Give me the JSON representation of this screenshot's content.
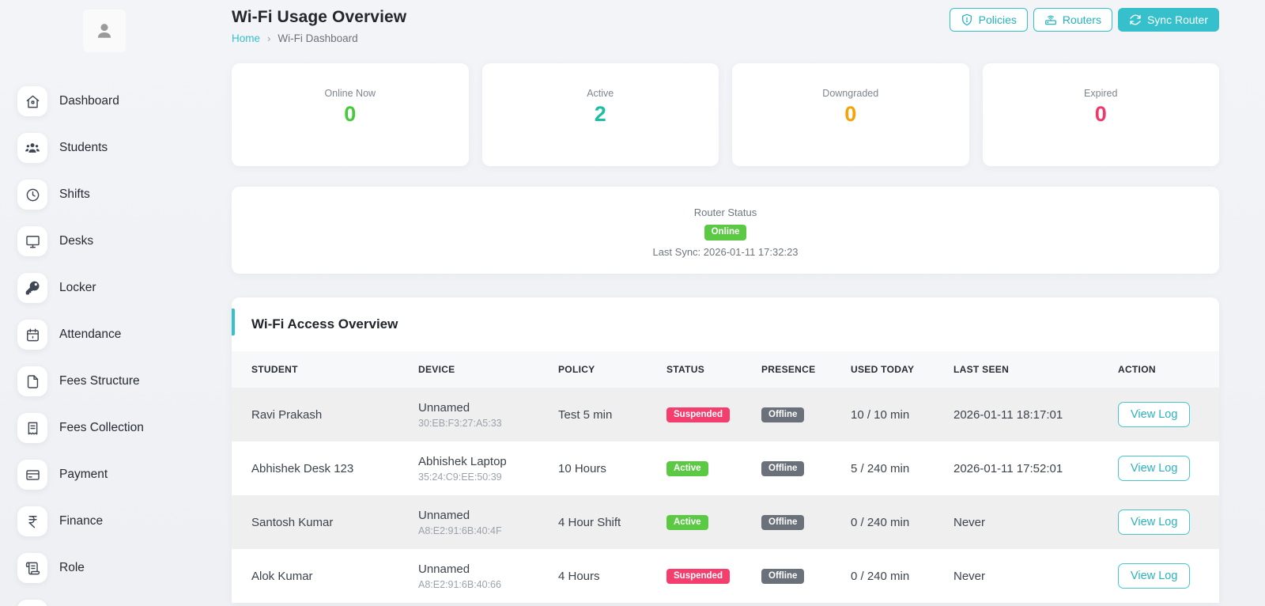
{
  "header": {
    "title": "Wi-Fi Usage Overview",
    "breadcrumb": {
      "home": "Home",
      "separator": "›",
      "current": "Wi-Fi Dashboard"
    },
    "actions": {
      "policies": "Policies",
      "routers": "Routers",
      "sync": "Sync Router"
    }
  },
  "sidebar": {
    "items": [
      {
        "label": "Dashboard",
        "icon": "home"
      },
      {
        "label": "Students",
        "icon": "users"
      },
      {
        "label": "Shifts",
        "icon": "clock"
      },
      {
        "label": "Desks",
        "icon": "monitor"
      },
      {
        "label": "Locker",
        "icon": "key"
      },
      {
        "label": "Attendance",
        "icon": "calendar"
      },
      {
        "label": "Fees Structure",
        "icon": "file"
      },
      {
        "label": "Fees Collection",
        "icon": "receipt"
      },
      {
        "label": "Payment",
        "icon": "credit-card"
      },
      {
        "label": "Finance",
        "icon": "rupee"
      },
      {
        "label": "Role",
        "icon": "scroll"
      }
    ]
  },
  "stats": [
    {
      "label": "Online Now",
      "value": "0",
      "color": "#47c93c"
    },
    {
      "label": "Active",
      "value": "2",
      "color": "#1dbfa3"
    },
    {
      "label": "Downgraded",
      "value": "0",
      "color": "#f7a308"
    },
    {
      "label": "Expired",
      "value": "0",
      "color": "#f2376b"
    }
  ],
  "router_status": {
    "label": "Router Status",
    "badge": "Online",
    "last_sync": "Last Sync: 2026-01-11 17:32:23"
  },
  "table": {
    "title": "Wi-Fi Access Overview",
    "columns": [
      "STUDENT",
      "DEVICE",
      "POLICY",
      "STATUS",
      "PRESENCE",
      "USED TODAY",
      "LAST SEEN",
      "ACTION"
    ],
    "action_label": "View Log",
    "rows": [
      {
        "student": "Ravi Prakash",
        "device_name": "Unnamed",
        "device_mac": "30:EB:F3:27:A5:33",
        "policy": "Test 5 min",
        "status": "Suspended",
        "presence": "Offline",
        "used_today": "10 / 10 min",
        "last_seen": "2026-01-11 18:17:01"
      },
      {
        "student": "Abhishek Desk 123",
        "device_name": "Abhishek Laptop",
        "device_mac": "35:24:C9:EE:50:39",
        "policy": "10 Hours",
        "status": "Active",
        "presence": "Offline",
        "used_today": "5 / 240 min",
        "last_seen": "2026-01-11 17:52:01"
      },
      {
        "student": "Santosh Kumar",
        "device_name": "Unnamed",
        "device_mac": "A8:E2:91:6B:40:4F",
        "policy": "4 Hour Shift",
        "status": "Active",
        "presence": "Offline",
        "used_today": "0 / 240 min",
        "last_seen": "Never"
      },
      {
        "student": "Alok Kumar",
        "device_name": "Unnamed",
        "device_mac": "A8:E2:91:6B:40:66",
        "policy": "4 Hours",
        "status": "Suspended",
        "presence": "Offline",
        "used_today": "0 / 240 min",
        "last_seen": "Never"
      }
    ]
  },
  "colors": {
    "accent": "#35c0cb",
    "badge_active": "#5cc944",
    "badge_suspended": "#f43f6e",
    "badge_offline": "#6a717a",
    "badge_online": "#5cc944"
  }
}
